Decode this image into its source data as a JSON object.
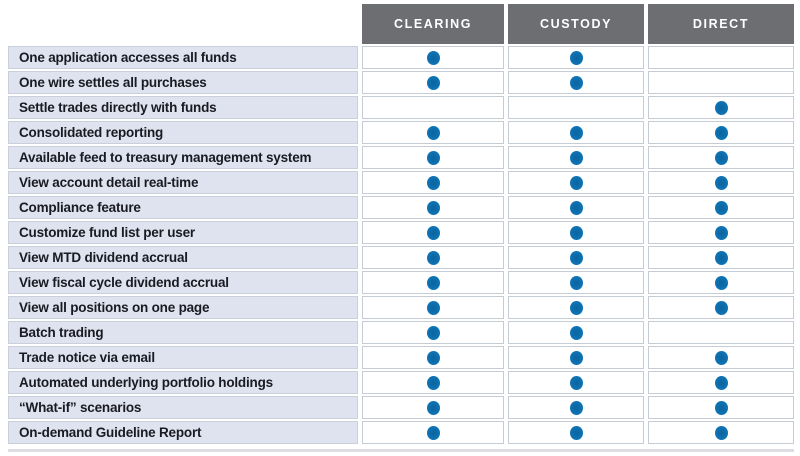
{
  "header": {
    "columns": [
      {
        "id": "clearing",
        "label": "CLEARING"
      },
      {
        "id": "custody",
        "label": "CUSTODY"
      },
      {
        "id": "direct",
        "label": "DIRECT"
      }
    ]
  },
  "chart_data": {
    "type": "table",
    "title": "",
    "columns": [
      "CLEARING",
      "CUSTODY",
      "DIRECT"
    ],
    "value_encoding": "filled blue dot = feature available, blank = not available",
    "rows": [
      {
        "feature": "One application accesses all funds",
        "values": [
          true,
          true,
          false
        ]
      },
      {
        "feature": "One wire settles all purchases",
        "values": [
          true,
          true,
          false
        ]
      },
      {
        "feature": "Settle trades directly with funds",
        "values": [
          false,
          false,
          true
        ]
      },
      {
        "feature": "Consolidated reporting",
        "values": [
          true,
          true,
          true
        ]
      },
      {
        "feature": "Available feed to treasury management system",
        "values": [
          true,
          true,
          true
        ]
      },
      {
        "feature": "View account detail real-time",
        "values": [
          true,
          true,
          true
        ]
      },
      {
        "feature": "Compliance feature",
        "values": [
          true,
          true,
          true
        ]
      },
      {
        "feature": "Customize fund list per user",
        "values": [
          true,
          true,
          true
        ]
      },
      {
        "feature": "View MTD dividend accrual",
        "values": [
          true,
          true,
          true
        ]
      },
      {
        "feature": "View fiscal cycle dividend accrual",
        "values": [
          true,
          true,
          true
        ]
      },
      {
        "feature": "View all positions on one page",
        "values": [
          true,
          true,
          true
        ]
      },
      {
        "feature": "Batch trading",
        "values": [
          true,
          true,
          false
        ]
      },
      {
        "feature": "Trade notice via email",
        "values": [
          true,
          true,
          true
        ]
      },
      {
        "feature": "Automated underlying portfolio holdings",
        "values": [
          true,
          true,
          true
        ]
      },
      {
        "feature": "“What-if” scenarios",
        "values": [
          true,
          true,
          true
        ]
      },
      {
        "feature": "On-demand Guideline Report",
        "values": [
          true,
          true,
          true
        ]
      }
    ]
  },
  "icons": {
    "available_dot": "blue-dot"
  },
  "colors": {
    "header_bg": "#6d6e71",
    "header_text": "#ffffff",
    "label_bg": "#dfe3ef",
    "label_text": "#191a22",
    "dot": "#0e73b5",
    "cell_border": "#c6ccd6"
  }
}
